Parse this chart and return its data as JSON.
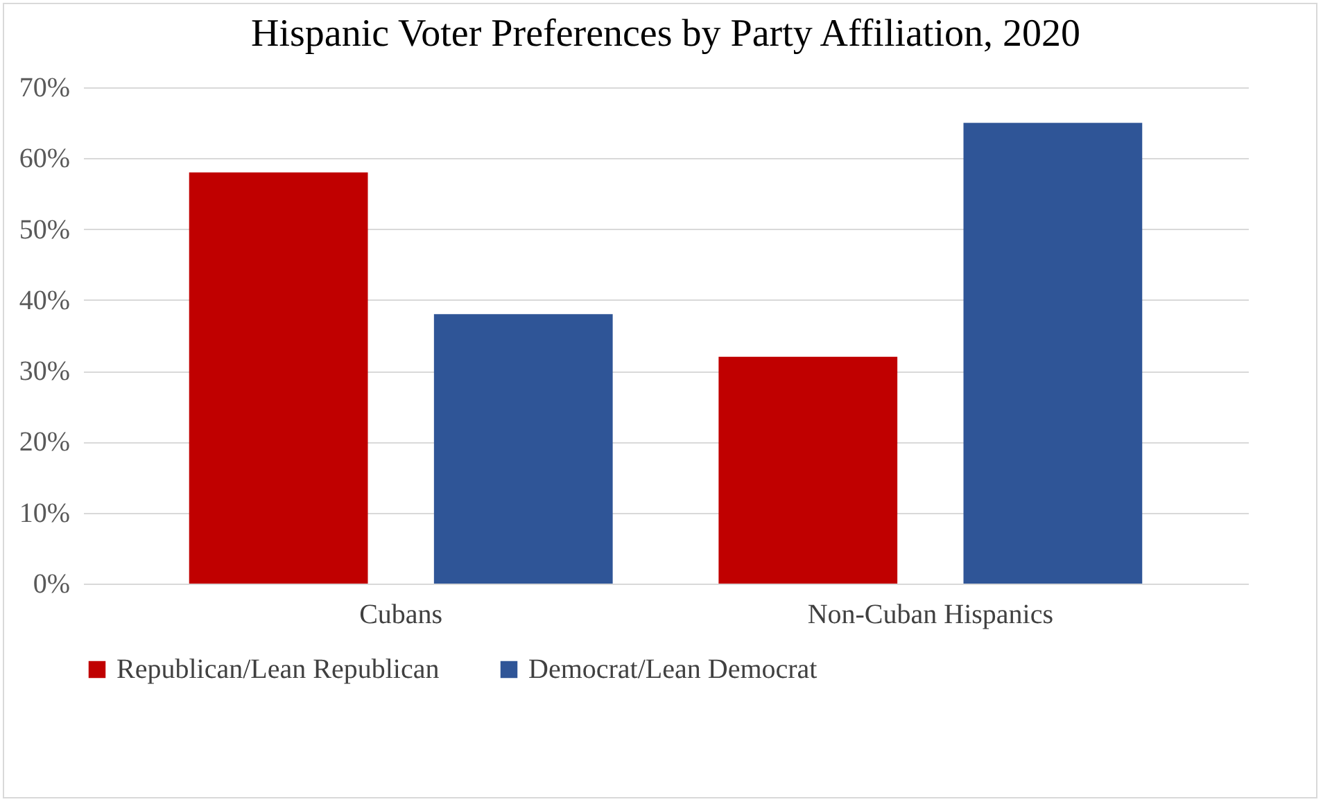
{
  "chart_data": {
    "type": "bar",
    "title": "Hispanic Voter Preferences by Party Affiliation, 2020",
    "categories": [
      "Cubans",
      "Non-Cuban Hispanics"
    ],
    "series": [
      {
        "name": "Republican/Lean Republican",
        "color": "#c00000",
        "values": [
          58,
          32
        ]
      },
      {
        "name": "Democrat/Lean Democrat",
        "color": "#2f5597",
        "values": [
          38,
          65
        ]
      }
    ],
    "ylim": [
      0,
      70
    ],
    "yticks": [
      {
        "value": 0,
        "label": "0%"
      },
      {
        "value": 10,
        "label": "10%"
      },
      {
        "value": 20,
        "label": "20%"
      },
      {
        "value": 30,
        "label": "30%"
      },
      {
        "value": 40,
        "label": "40%"
      },
      {
        "value": 50,
        "label": "50%"
      },
      {
        "value": 60,
        "label": "60%"
      },
      {
        "value": 70,
        "label": "70%"
      }
    ],
    "grid": "y",
    "legend": "bottom"
  }
}
